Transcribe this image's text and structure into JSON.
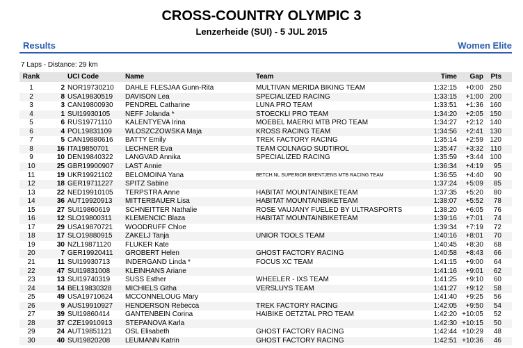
{
  "header": {
    "title": "CROSS-COUNTRY OLYMPIC 3",
    "subtitle": "Lenzerheide (SUI) - 5 JUL 2015",
    "left": "Results",
    "right": "Women Elite",
    "info": "7 Laps - Distance: 29 km"
  },
  "table": {
    "columns": [
      "Rank",
      "",
      "UCI Code",
      "Name",
      "Team",
      "Time",
      "Gap",
      "Pts"
    ],
    "rows": [
      [
        "1",
        "2",
        "NOR19730210",
        "DAHLE FLESJAA Gunn-Rita",
        "MULTIVAN MERIDA BIKING TEAM",
        "1:32:15",
        "+0:00",
        "250"
      ],
      [
        "2",
        "8",
        "USA19830519",
        "DAVISON Lea",
        "SPECIALIZED RACING",
        "1:33:15",
        "+1:00",
        "200"
      ],
      [
        "3",
        "3",
        "CAN19800930",
        "PENDREL Catharine",
        "LUNA PRO TEAM",
        "1:33:51",
        "+1:36",
        "160"
      ],
      [
        "4",
        "1",
        "SUI19930105",
        "NEFF Jolanda *",
        "STOECKLI PRO TEAM",
        "1:34:20",
        "+2:05",
        "150"
      ],
      [
        "5",
        "6",
        "RUS19771110",
        "KALENTYEVA Irina",
        "MOEBEL MAERKI MTB PRO TEAM",
        "1:34:27",
        "+2:12",
        "140"
      ],
      [
        "6",
        "4",
        "POL19831109",
        "WLOSZCZOWSKA Maja",
        "KROSS RACING TEAM",
        "1:34:56",
        "+2:41",
        "130"
      ],
      [
        "7",
        "5",
        "CAN19880616",
        "BATTY Emily",
        "TREK FACTORY RACING",
        "1:35:14",
        "+2:59",
        "120"
      ],
      [
        "8",
        "16",
        "ITA19850701",
        "LECHNER Eva",
        "TEAM COLNAGO SUDTIROL",
        "1:35:47",
        "+3:32",
        "110"
      ],
      [
        "9",
        "10",
        "DEN19840322",
        "LANGVAD Annika",
        "SPECIALIZED RACING",
        "1:35:59",
        "+3:44",
        "100"
      ],
      [
        "10",
        "25",
        "GBR19900907",
        "LAST Annie",
        null,
        "1:36:34",
        "+4:19",
        "95"
      ],
      [
        "11",
        "19",
        "UKR19921102",
        "BELOMOINA Yana",
        "BETCH.NL SUPERIOR BRENTJENS MTB RACING TEAM",
        "1:36:55",
        "+4:40",
        "90"
      ],
      [
        "12",
        "18",
        "GER19711227",
        "SPITZ Sabine",
        null,
        "1:37:24",
        "+5:09",
        "85"
      ],
      [
        "13",
        "22",
        "NED19910105",
        "TERPSTRA Anne",
        "HABITAT MOUNTAINBIKETEAM",
        "1:37:35",
        "+5:20",
        "80"
      ],
      [
        "14",
        "36",
        "AUT19920913",
        "MITTERBAUER Lisa",
        "HABITAT MOUNTAINBIKETEAM",
        "1:38:07",
        "+5:52",
        "78"
      ],
      [
        "15",
        "27",
        "SUI19860619",
        "SCHNEITTER Nathalie",
        "ROSE VAUJANY FUELED BY ULTRASPORTS",
        "1:38:20",
        "+6:05",
        "76"
      ],
      [
        "16",
        "12",
        "SLO19800311",
        "KLEMENCIC Blaza",
        "HABITAT MOUNTAINBIKETEAM",
        "1:39:16",
        "+7:01",
        "74"
      ],
      [
        "17",
        "29",
        "USA19870721",
        "WOODRUFF Chloe",
        null,
        "1:39:34",
        "+7:19",
        "72"
      ],
      [
        "18",
        "17",
        "SLO19880915",
        "ZAKELJ Tanja",
        "UNIOR TOOLS TEAM",
        "1:40:16",
        "+8:01",
        "70"
      ],
      [
        "19",
        "30",
        "NZL19871120",
        "FLUKER Kate",
        null,
        "1:40:45",
        "+8:30",
        "68"
      ],
      [
        "20",
        "7",
        "GER19920411",
        "GROBERT Helen",
        "GHOST FACTORY RACING",
        "1:40:58",
        "+8:43",
        "66"
      ],
      [
        "21",
        "11",
        "SUI19930713",
        "INDERGAND Linda *",
        "FOCUS XC TEAM",
        "1:41:15",
        "+9:00",
        "64"
      ],
      [
        "22",
        "47",
        "SUI19831008",
        "KLEINHANS Ariane",
        null,
        "1:41:16",
        "+9:01",
        "62"
      ],
      [
        "23",
        "13",
        "SUI19740319",
        "SUSS Esther",
        "WHEELER - IXS TEAM",
        "1:41:25",
        "+9:10",
        "60"
      ],
      [
        "24",
        "14",
        "BEL19830328",
        "MICHIELS Githa",
        "VERSLUYS TEAM",
        "1:41:27",
        "+9:12",
        "58"
      ],
      [
        "25",
        "49",
        "USA19710624",
        "MCCONNELOUG Mary",
        null,
        "1:41:40",
        "+9:25",
        "56"
      ],
      [
        "26",
        "9",
        "AUS19910927",
        "HENDERSON Rebecca",
        "TREK FACTORY RACING",
        "1:42:05",
        "+9:50",
        "54"
      ],
      [
        "27",
        "39",
        "SUI19860414",
        "GANTENBEIN Corina",
        "HAIBIKE OETZTAL PRO TEAM",
        "1:42:20",
        "+10:05",
        "52"
      ],
      [
        "28",
        "37",
        "CZE19910913",
        "STEPANOVA Karla",
        null,
        "1:42:30",
        "+10:15",
        "50"
      ],
      [
        "29",
        "24",
        "AUT19851121",
        "OSL Elisabeth",
        "GHOST FACTORY RACING",
        "1:42:44",
        "+10:29",
        "48"
      ],
      [
        "30",
        "40",
        "SUI19820208",
        "LEUMANN Katrin",
        "GHOST FACTORY RACING",
        "1:42:51",
        "+10:36",
        "46"
      ]
    ]
  }
}
